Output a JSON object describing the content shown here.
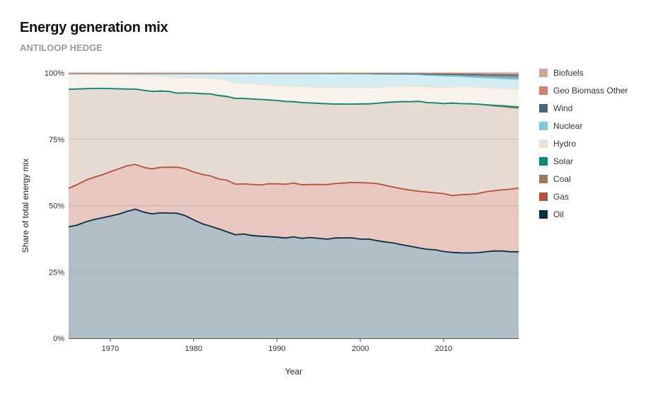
{
  "chart_data": {
    "type": "area",
    "stacked": true,
    "normalized": true,
    "title": "Energy generation mix",
    "subtitle": "ANTILOOP HEDGE",
    "xlabel": "Year",
    "ylabel": "Share of total energy mix",
    "xlim": [
      1965,
      2019
    ],
    "ylim": [
      0,
      100
    ],
    "x_ticks": [
      1970,
      1980,
      1990,
      2000,
      2010
    ],
    "y_ticks": [
      0,
      25,
      50,
      75,
      100
    ],
    "y_tick_labels": [
      "0%",
      "25%",
      "50%",
      "75%",
      "100%"
    ],
    "grid": "horizontal",
    "legend_position": "right",
    "x": [
      1965,
      1966,
      1967,
      1968,
      1969,
      1970,
      1971,
      1972,
      1973,
      1974,
      1975,
      1976,
      1977,
      1978,
      1979,
      1980,
      1981,
      1982,
      1983,
      1984,
      1985,
      1986,
      1987,
      1988,
      1989,
      1990,
      1991,
      1992,
      1993,
      1994,
      1995,
      1996,
      1997,
      1998,
      1999,
      2000,
      2001,
      2002,
      2003,
      2004,
      2005,
      2006,
      2007,
      2008,
      2009,
      2010,
      2011,
      2012,
      2013,
      2014,
      2015,
      2016,
      2017,
      2018,
      2019
    ],
    "series": [
      {
        "name": "Oil",
        "color": "#0b2c45",
        "fill": "#b0bfc6",
        "values": [
          42,
          42.8,
          44.2,
          45.2,
          45.9,
          46.8,
          47.6,
          48.7,
          49.5,
          48.5,
          47.8,
          48.3,
          48.2,
          48.1,
          47.2,
          45.6,
          44.2,
          43.1,
          42.1,
          41.1,
          40.1,
          40.4,
          39.8,
          39.6,
          39.5,
          39.4,
          39.2,
          39.6,
          39.2,
          39.5,
          39.2,
          39.0,
          39.5,
          39.5,
          39.5,
          39.0,
          39.0,
          38.4,
          37.9,
          37.5,
          36.8,
          36.2,
          35.6,
          35.0,
          34.8,
          34.2,
          33.8,
          33.7,
          33.5,
          33.4,
          33.7,
          33.9,
          33.8,
          33.3,
          33.1
        ]
      },
      {
        "name": "Gas",
        "color": "#b5503c",
        "fill": "#e9c7c1",
        "values": [
          14.5,
          15.3,
          15.8,
          16.1,
          16.4,
          17.0,
          17.4,
          17.5,
          17.2,
          17.2,
          17.3,
          17.5,
          17.6,
          17.7,
          18.1,
          18.4,
          19.0,
          19.4,
          19.2,
          19.9,
          19.6,
          19.4,
          19.8,
          19.9,
          20.5,
          20.8,
          21.0,
          21.0,
          21.0,
          20.8,
          21.1,
          21.5,
          21.4,
          21.6,
          21.8,
          22.2,
          22.1,
          22.4,
          22.3,
          22.0,
          22.0,
          22.1,
          22.3,
          22.5,
          22.4,
          22.8,
          22.4,
          22.9,
          23.0,
          23.0,
          23.4,
          23.4,
          23.7,
          24.1,
          24.4
        ]
      },
      {
        "name": "Coal",
        "color": "#9b7b5c",
        "fill": "#e6dbd2",
        "values": [
          37.3,
          36.2,
          34.9,
          33.9,
          33.0,
          31.9,
          30.7,
          29.5,
          28.9,
          29.6,
          29.8,
          29.4,
          29.2,
          28.5,
          29.2,
          30.4,
          31.1,
          31.5,
          32.1,
          32.3,
          33.2,
          33.1,
          33.1,
          33.2,
          32.6,
          32.5,
          32.4,
          31.8,
          32.2,
          32.0,
          31.8,
          31.8,
          31.3,
          31.1,
          30.8,
          31.0,
          31.1,
          31.6,
          32.6,
          33.5,
          34.3,
          34.8,
          35.4,
          35.2,
          35.4,
          35.5,
          36.4,
          36.0,
          35.6,
          35.0,
          33.9,
          33.0,
          32.3,
          31.5,
          30.6
        ]
      },
      {
        "name": "Solar",
        "color": "#0b8a78",
        "fill": "#0b8a78",
        "values": [
          0,
          0,
          0,
          0,
          0,
          0,
          0,
          0,
          0,
          0,
          0,
          0,
          0,
          0,
          0,
          0,
          0,
          0,
          0,
          0,
          0,
          0,
          0,
          0,
          0,
          0,
          0,
          0,
          0,
          0,
          0,
          0,
          0,
          0,
          0,
          0,
          0,
          0,
          0,
          0,
          0,
          0,
          0,
          0,
          0,
          0,
          0,
          0,
          0,
          0,
          0.1,
          0.2,
          0.3,
          0.4,
          0.5
        ]
      },
      {
        "name": "Hydro",
        "color": "#f0e0d2",
        "fill": "#f8f2ec",
        "values": [
          5.8,
          5.6,
          5.5,
          5.4,
          5.3,
          5.3,
          5.3,
          5.3,
          5.2,
          5.8,
          6.0,
          5.8,
          5.8,
          6.0,
          6.0,
          5.9,
          6.2,
          6.1,
          6.3,
          6.1,
          6.0,
          5.9,
          5.9,
          5.8,
          5.8,
          5.8,
          6.0,
          5.9,
          6.3,
          6.2,
          6.4,
          6.6,
          6.6,
          6.6,
          6.6,
          6.5,
          6.4,
          6.1,
          6.2,
          6.0,
          5.9,
          6.1,
          6.0,
          6.2,
          6.3,
          6.4,
          6.4,
          6.7,
          6.7,
          6.7,
          6.7,
          6.7,
          6.7,
          6.7,
          6.7
        ]
      },
      {
        "name": "Nuclear",
        "color": "#7dcbd8",
        "fill": "#d4edf2",
        "values": [
          0.2,
          0.3,
          0.3,
          0.3,
          0.4,
          0.5,
          0.6,
          0.7,
          0.8,
          0.7,
          0.9,
          1.0,
          1.1,
          1.6,
          1.5,
          1.7,
          1.6,
          1.8,
          2.2,
          2.8,
          3.7,
          3.8,
          4.0,
          4.3,
          4.5,
          4.7,
          4.9,
          5.1,
          5.1,
          5.3,
          5.3,
          5.3,
          5.4,
          5.4,
          5.4,
          5.4,
          5.5,
          5.4,
          5.0,
          5.0,
          4.9,
          4.7,
          4.6,
          4.6,
          4.5,
          4.5,
          4.2,
          4.0,
          3.8,
          3.8,
          3.8,
          3.9,
          3.8,
          3.9,
          3.9
        ]
      },
      {
        "name": "Wind",
        "color": "#4a6679",
        "fill": "#8b9ea9",
        "values": [
          0,
          0,
          0,
          0,
          0,
          0,
          0,
          0,
          0,
          0,
          0,
          0,
          0,
          0,
          0,
          0,
          0,
          0,
          0,
          0,
          0,
          0,
          0,
          0,
          0,
          0.05,
          0.05,
          0.05,
          0.05,
          0.05,
          0.05,
          0.06,
          0.07,
          0.08,
          0.09,
          0.1,
          0.1,
          0.12,
          0.15,
          0.18,
          0.2,
          0.25,
          0.3,
          0.4,
          0.5,
          0.6,
          0.7,
          0.8,
          0.9,
          1.0,
          1.1,
          1.2,
          1.3,
          1.4,
          1.5
        ]
      },
      {
        "name": "Geo Biomass Other",
        "color": "#d08272",
        "fill": "#e4a89c",
        "values": [
          0.1,
          0.1,
          0.1,
          0.1,
          0.1,
          0.1,
          0.1,
          0.1,
          0.1,
          0.1,
          0.1,
          0.1,
          0.1,
          0.1,
          0.1,
          0.1,
          0.1,
          0.1,
          0.1,
          0.1,
          0.1,
          0.1,
          0.1,
          0.1,
          0.1,
          0.1,
          0.1,
          0.1,
          0.1,
          0.1,
          0.1,
          0.1,
          0.1,
          0.1,
          0.1,
          0.1,
          0.1,
          0.2,
          0.2,
          0.2,
          0.2,
          0.2,
          0.2,
          0.3,
          0.3,
          0.4,
          0.4,
          0.4,
          0.5,
          0.5,
          0.6,
          0.6,
          0.7,
          0.7,
          0.7
        ]
      },
      {
        "name": "Biofuels",
        "color": "#c9aa98",
        "fill": "#c9aa98",
        "values": [
          0.1,
          0.1,
          0.1,
          0.1,
          0.1,
          0.1,
          0.1,
          0.1,
          0.1,
          0.1,
          0.1,
          0.1,
          0.1,
          0.1,
          0.1,
          0.1,
          0.1,
          0.1,
          0.1,
          0.1,
          0.1,
          0.1,
          0.1,
          0.1,
          0.1,
          0.1,
          0.1,
          0.1,
          0.1,
          0.1,
          0.1,
          0.1,
          0.1,
          0.1,
          0.1,
          0.1,
          0.1,
          0.1,
          0.1,
          0.1,
          0.1,
          0.1,
          0.1,
          0.2,
          0.2,
          0.2,
          0.2,
          0.2,
          0.2,
          0.2,
          0.2,
          0.2,
          0.2,
          0.2,
          0.2
        ]
      }
    ],
    "legend_order": [
      "Biofuels",
      "Geo Biomass Other",
      "Wind",
      "Nuclear",
      "Hydro",
      "Solar",
      "Coal",
      "Gas",
      "Oil"
    ]
  }
}
